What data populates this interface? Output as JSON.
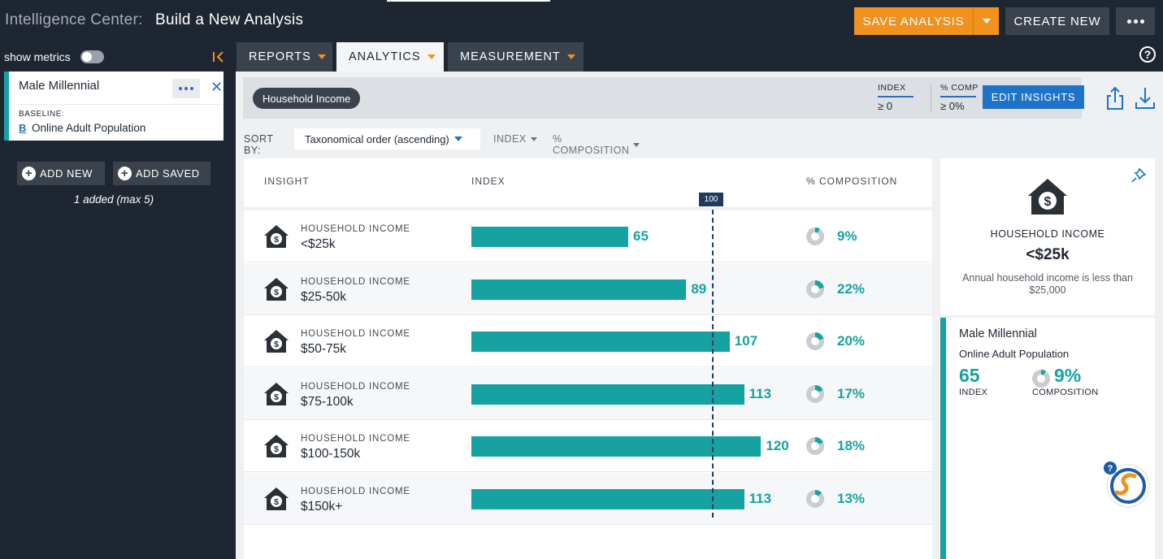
{
  "header": {
    "title_prefix": "Intelligence Center:",
    "title": "Build a New Analysis",
    "save_label": "SAVE ANALYSIS",
    "create_label": "CREATE NEW",
    "colors": {
      "accent": "#f0921d",
      "dark": "#1e2631",
      "teal": "#17a2a2",
      "blue": "#1e72c8"
    }
  },
  "sidebar": {
    "show_metrics_label": "show metrics",
    "audience": {
      "name": "Male Millennial",
      "baseline_label": "BASELINE:",
      "baseline_badge": "B",
      "baseline_value": "Online Adult Population"
    },
    "add_new_label": "ADD NEW",
    "add_saved_label": "ADD SAVED",
    "added_note": "1 added (max 5)"
  },
  "tabs": [
    {
      "label": "REPORTS",
      "active": false
    },
    {
      "label": "ANALYTICS",
      "active": true
    },
    {
      "label": "MEASUREMENT",
      "active": false
    }
  ],
  "filter": {
    "chip": "Household Income",
    "index_label": "INDEX",
    "index_value": "≥ 0",
    "comp_label": "% COMP",
    "comp_value": "≥ 0%",
    "edit_label": "EDIT INSIGHTS"
  },
  "sort": {
    "label": "SORT BY:",
    "selected": "Taxonomical order (ascending)",
    "index_option": "INDEX",
    "composition_option": "% COMPOSITION"
  },
  "table": {
    "headers": {
      "insight": "INSIGHT",
      "index": "INDEX",
      "composition": "% COMPOSITION"
    },
    "reference_label": "100",
    "rows": [
      {
        "category": "HOUSEHOLD INCOME",
        "value": "<$25k",
        "index": 65,
        "index_label": "65",
        "composition": 0.09,
        "composition_label": "9%"
      },
      {
        "category": "HOUSEHOLD INCOME",
        "value": "$25-50k",
        "index": 89,
        "index_label": "89",
        "composition": 0.22,
        "composition_label": "22%"
      },
      {
        "category": "HOUSEHOLD INCOME",
        "value": "$50-75k",
        "index": 107,
        "index_label": "107",
        "composition": 0.2,
        "composition_label": "20%"
      },
      {
        "category": "HOUSEHOLD INCOME",
        "value": "$75-100k",
        "index": 113,
        "index_label": "113",
        "composition": 0.17,
        "composition_label": "17%"
      },
      {
        "category": "HOUSEHOLD INCOME",
        "value": "$100-150k",
        "index": 120,
        "index_label": "120",
        "composition": 0.18,
        "composition_label": "18%"
      },
      {
        "category": "HOUSEHOLD INCOME",
        "value": "$150k+",
        "index": 113,
        "index_label": "113",
        "composition": 0.13,
        "composition_label": "13%"
      }
    ]
  },
  "detail": {
    "category": "HOUSEHOLD INCOME",
    "value": "<$25k",
    "description": "Annual household income is less than $25,000",
    "audience": "Male Millennial",
    "baseline": "Online Adult Population",
    "index": "65",
    "index_label": "INDEX",
    "composition": "9%",
    "composition_fraction": 0.09,
    "composition_label": "COMPOSITION"
  }
}
